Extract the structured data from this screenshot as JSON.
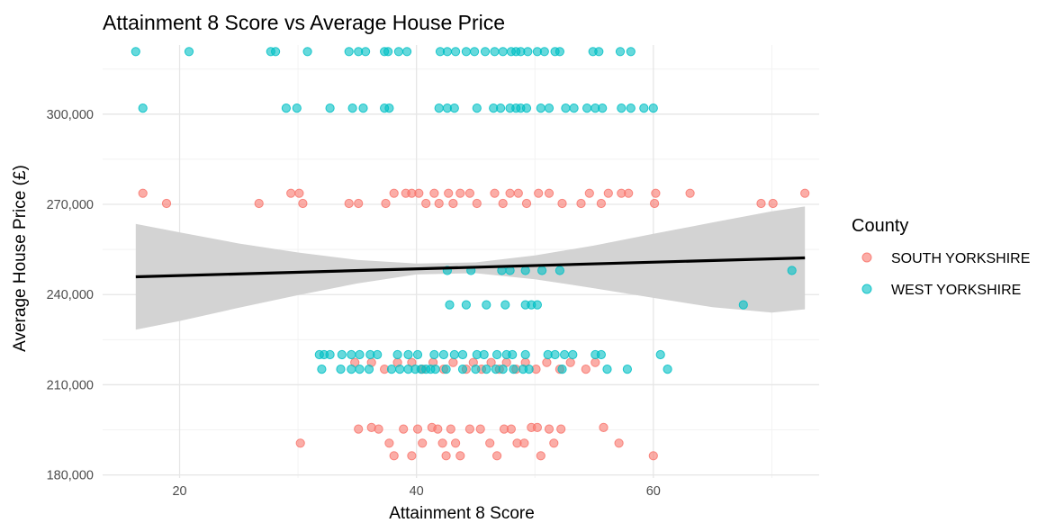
{
  "chart_data": {
    "type": "scatter",
    "title": "Attainment 8 Score vs Average House Price",
    "xlabel": "Attainment 8 Score",
    "ylabel": "Average House Price (£)",
    "xlim": [
      13.5,
      74
    ],
    "ylim": [
      179000,
      323000
    ],
    "x_ticks": [
      20,
      40,
      60
    ],
    "x_tick_labels": [
      "20",
      "40",
      "60"
    ],
    "y_ticks": [
      180000,
      210000,
      240000,
      270000,
      300000
    ],
    "y_tick_labels": [
      "180,000",
      "210,000",
      "240,000",
      "270,000",
      "300,000"
    ],
    "grid": true,
    "legend": {
      "title": "County",
      "position": "right"
    },
    "colors": {
      "SOUTH YORKSHIRE": "#F8766D",
      "WEST YORKSHIRE": "#00BFC4",
      "trend": "#000000",
      "band": "#d3d3d3"
    },
    "series": [
      {
        "name": "SOUTH YORKSHIRE",
        "points": [
          [
            16.9,
            273700
          ],
          [
            18.9,
            270300
          ],
          [
            26.7,
            270300
          ],
          [
            29.4,
            273700
          ],
          [
            30.1,
            273700
          ],
          [
            30.4,
            270300
          ],
          [
            34.3,
            270300
          ],
          [
            35.1,
            270300
          ],
          [
            37.4,
            270300
          ],
          [
            38.1,
            273700
          ],
          [
            39.1,
            273700
          ],
          [
            39.6,
            273700
          ],
          [
            40.2,
            273700
          ],
          [
            40.8,
            270300
          ],
          [
            41.5,
            273700
          ],
          [
            41.9,
            270300
          ],
          [
            42.7,
            273700
          ],
          [
            43.1,
            270300
          ],
          [
            43.7,
            273700
          ],
          [
            44.5,
            273700
          ],
          [
            45.1,
            270300
          ],
          [
            46.6,
            273700
          ],
          [
            47.3,
            270300
          ],
          [
            47.9,
            273700
          ],
          [
            48.6,
            273700
          ],
          [
            49.3,
            270300
          ],
          [
            50.3,
            273700
          ],
          [
            51.2,
            273700
          ],
          [
            52.3,
            270300
          ],
          [
            53.9,
            270300
          ],
          [
            54.6,
            273700
          ],
          [
            55.6,
            270300
          ],
          [
            56.2,
            273700
          ],
          [
            57.3,
            273700
          ],
          [
            57.9,
            273700
          ],
          [
            60.2,
            273700
          ],
          [
            60.1,
            270300
          ],
          [
            63.1,
            273700
          ],
          [
            69.1,
            270300
          ],
          [
            70.1,
            270300
          ],
          [
            72.8,
            273700
          ],
          [
            34.8,
            217400
          ],
          [
            36.2,
            217400
          ],
          [
            37.3,
            215200
          ],
          [
            38.4,
            217400
          ],
          [
            39.6,
            217400
          ],
          [
            40.5,
            215200
          ],
          [
            41.4,
            217400
          ],
          [
            42.3,
            215200
          ],
          [
            43.1,
            217400
          ],
          [
            44.2,
            215200
          ],
          [
            44.8,
            217400
          ],
          [
            45.5,
            215200
          ],
          [
            46.3,
            217400
          ],
          [
            47.0,
            215200
          ],
          [
            47.6,
            217400
          ],
          [
            48.4,
            215200
          ],
          [
            49.2,
            217400
          ],
          [
            50.1,
            215200
          ],
          [
            51.0,
            217400
          ],
          [
            52.1,
            215200
          ],
          [
            53.0,
            217400
          ],
          [
            54.3,
            215200
          ],
          [
            55.1,
            217400
          ],
          [
            30.2,
            190600
          ],
          [
            35.1,
            195300
          ],
          [
            36.2,
            195800
          ],
          [
            36.8,
            195300
          ],
          [
            37.7,
            190600
          ],
          [
            38.1,
            186400
          ],
          [
            38.9,
            195300
          ],
          [
            39.6,
            186400
          ],
          [
            40.1,
            195300
          ],
          [
            40.5,
            190600
          ],
          [
            41.3,
            195800
          ],
          [
            41.8,
            195300
          ],
          [
            42.2,
            190600
          ],
          [
            42.5,
            186400
          ],
          [
            42.9,
            195300
          ],
          [
            43.3,
            190600
          ],
          [
            43.7,
            186400
          ],
          [
            44.5,
            195300
          ],
          [
            45.4,
            195300
          ],
          [
            46.2,
            190600
          ],
          [
            46.8,
            186400
          ],
          [
            47.4,
            195300
          ],
          [
            48.0,
            195300
          ],
          [
            48.5,
            190600
          ],
          [
            49.1,
            190600
          ],
          [
            49.7,
            195800
          ],
          [
            50.2,
            195800
          ],
          [
            50.5,
            186400
          ],
          [
            51.2,
            195300
          ],
          [
            51.6,
            190600
          ],
          [
            52.2,
            195300
          ],
          [
            55.8,
            195800
          ],
          [
            57.1,
            190600
          ],
          [
            60.0,
            186400
          ]
        ]
      },
      {
        "name": "WEST YORKSHIRE",
        "points": [
          [
            16.3,
            320800
          ],
          [
            20.8,
            320800
          ],
          [
            27.7,
            320800
          ],
          [
            28.1,
            320800
          ],
          [
            30.8,
            320800
          ],
          [
            34.3,
            320800
          ],
          [
            35.1,
            320800
          ],
          [
            35.7,
            320800
          ],
          [
            37.3,
            320800
          ],
          [
            37.6,
            320800
          ],
          [
            38.5,
            320800
          ],
          [
            39.2,
            320800
          ],
          [
            42.0,
            320800
          ],
          [
            42.6,
            320800
          ],
          [
            43.3,
            320800
          ],
          [
            44.2,
            320800
          ],
          [
            44.9,
            320800
          ],
          [
            45.8,
            320800
          ],
          [
            46.6,
            320800
          ],
          [
            47.3,
            320800
          ],
          [
            48.0,
            320800
          ],
          [
            48.4,
            320800
          ],
          [
            48.8,
            320800
          ],
          [
            49.4,
            320800
          ],
          [
            50.2,
            320800
          ],
          [
            50.8,
            320800
          ],
          [
            51.7,
            320800
          ],
          [
            52.1,
            320800
          ],
          [
            54.9,
            320800
          ],
          [
            55.4,
            320800
          ],
          [
            57.2,
            320800
          ],
          [
            58.1,
            320800
          ],
          [
            16.9,
            302000
          ],
          [
            29.0,
            302000
          ],
          [
            29.9,
            302000
          ],
          [
            32.7,
            302000
          ],
          [
            34.6,
            302000
          ],
          [
            35.5,
            302000
          ],
          [
            37.3,
            302000
          ],
          [
            37.7,
            302000
          ],
          [
            41.9,
            302000
          ],
          [
            42.6,
            302000
          ],
          [
            43.2,
            302000
          ],
          [
            45.1,
            302000
          ],
          [
            46.5,
            302000
          ],
          [
            47.1,
            302000
          ],
          [
            47.9,
            302000
          ],
          [
            48.4,
            302000
          ],
          [
            48.8,
            302000
          ],
          [
            49.3,
            302000
          ],
          [
            50.5,
            302000
          ],
          [
            51.2,
            302000
          ],
          [
            52.6,
            302000
          ],
          [
            53.3,
            302000
          ],
          [
            54.4,
            302000
          ],
          [
            55.1,
            302000
          ],
          [
            55.7,
            302000
          ],
          [
            57.3,
            302000
          ],
          [
            58.1,
            302000
          ],
          [
            59.2,
            302000
          ],
          [
            60.0,
            302000
          ],
          [
            42.6,
            248000
          ],
          [
            44.6,
            248000
          ],
          [
            47.2,
            248000
          ],
          [
            47.9,
            248000
          ],
          [
            49.2,
            248000
          ],
          [
            50.6,
            248000
          ],
          [
            52.1,
            248000
          ],
          [
            71.7,
            248000
          ],
          [
            42.8,
            236600
          ],
          [
            44.2,
            236600
          ],
          [
            45.9,
            236600
          ],
          [
            47.5,
            236600
          ],
          [
            49.2,
            236600
          ],
          [
            49.7,
            236600
          ],
          [
            50.2,
            236600
          ],
          [
            67.6,
            236600
          ],
          [
            31.8,
            220000
          ],
          [
            32.2,
            220000
          ],
          [
            32.7,
            220000
          ],
          [
            33.7,
            220000
          ],
          [
            34.5,
            220000
          ],
          [
            35.2,
            220000
          ],
          [
            36.1,
            220000
          ],
          [
            36.7,
            220000
          ],
          [
            38.4,
            220000
          ],
          [
            39.3,
            220000
          ],
          [
            40.1,
            220000
          ],
          [
            41.5,
            220000
          ],
          [
            42.3,
            220000
          ],
          [
            43.2,
            220000
          ],
          [
            43.9,
            220000
          ],
          [
            45.1,
            220000
          ],
          [
            45.7,
            220000
          ],
          [
            46.8,
            220000
          ],
          [
            47.6,
            220000
          ],
          [
            48.1,
            220000
          ],
          [
            49.2,
            220000
          ],
          [
            51.1,
            220000
          ],
          [
            51.7,
            220000
          ],
          [
            52.5,
            220000
          ],
          [
            53.2,
            220000
          ],
          [
            55.1,
            220000
          ],
          [
            55.6,
            220000
          ],
          [
            60.6,
            220000
          ],
          [
            32.0,
            215200
          ],
          [
            33.6,
            215200
          ],
          [
            34.5,
            215200
          ],
          [
            35.2,
            215200
          ],
          [
            36.0,
            215200
          ],
          [
            37.9,
            215200
          ],
          [
            38.6,
            215200
          ],
          [
            39.3,
            215200
          ],
          [
            39.9,
            215200
          ],
          [
            40.4,
            215200
          ],
          [
            40.8,
            215200
          ],
          [
            41.2,
            215200
          ],
          [
            41.6,
            215200
          ],
          [
            42.5,
            215200
          ],
          [
            43.9,
            215200
          ],
          [
            45.0,
            215200
          ],
          [
            45.9,
            215200
          ],
          [
            46.7,
            215200
          ],
          [
            47.3,
            215200
          ],
          [
            48.2,
            215200
          ],
          [
            49.0,
            215200
          ],
          [
            49.5,
            215200
          ],
          [
            52.3,
            215200
          ],
          [
            56.1,
            215200
          ],
          [
            57.8,
            215200
          ],
          [
            61.2,
            215200
          ]
        ]
      }
    ],
    "trend": {
      "x": [
        16.3,
        72.8
      ],
      "y": [
        245900,
        252200
      ]
    },
    "band": {
      "x": [
        16.3,
        20,
        25,
        30,
        35,
        40,
        45,
        50,
        55,
        60,
        65,
        70,
        72.8
      ],
      "upper": [
        263500,
        260700,
        257000,
        254000,
        251500,
        250300,
        250700,
        253000,
        256300,
        260200,
        264000,
        267700,
        269300
      ],
      "lower": [
        228300,
        231200,
        235600,
        239800,
        243700,
        246700,
        247100,
        245100,
        242100,
        238900,
        235800,
        234000,
        235100
      ]
    }
  }
}
